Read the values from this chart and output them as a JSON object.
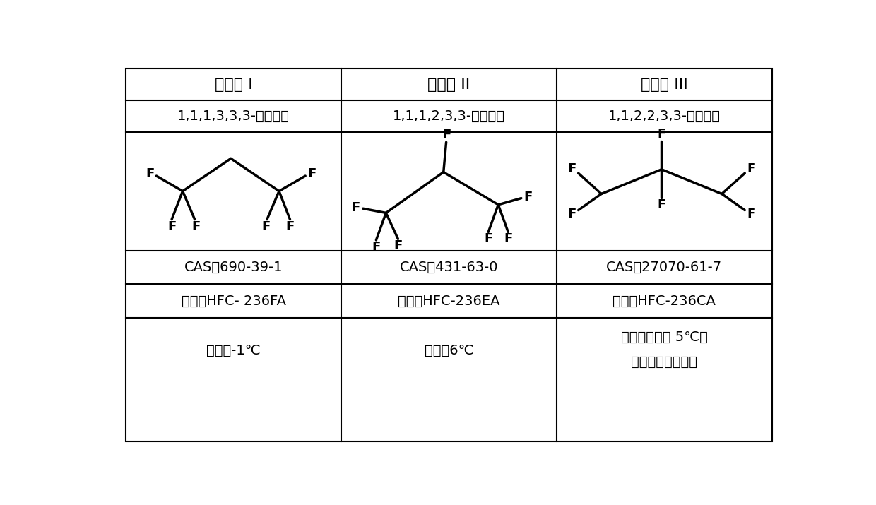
{
  "background_color": "#ffffff",
  "border_color": "#000000",
  "text_color": "#000000",
  "col_headers": [
    "异构体 I",
    "异构体 II",
    "异构体 III"
  ],
  "row1": [
    "1,1,1,3,3,3-六氟丙烷",
    "1,1,1,2,3,3-六氟丙烷",
    "1,1,2,2,3,3-六氟丙烷"
  ],
  "row3": [
    "CAS：690-39-1",
    "CAS：431-63-0",
    "CAS：27070-61-7"
  ],
  "row4": [
    "代号：HFC- 236FA",
    "代号：HFC-236EA",
    "代号：HFC-236CA"
  ],
  "row5_col1": "永点：-1℃",
  "row5_col2": "永点：6℃",
  "row5_col3_line1": "永点：网络标 5℃，",
  "row5_col3_line2": "国际标准库未探明",
  "header_fontsize": 16,
  "cell_fontsize": 14,
  "struct_lw": 2.5,
  "table_lw": 1.5
}
